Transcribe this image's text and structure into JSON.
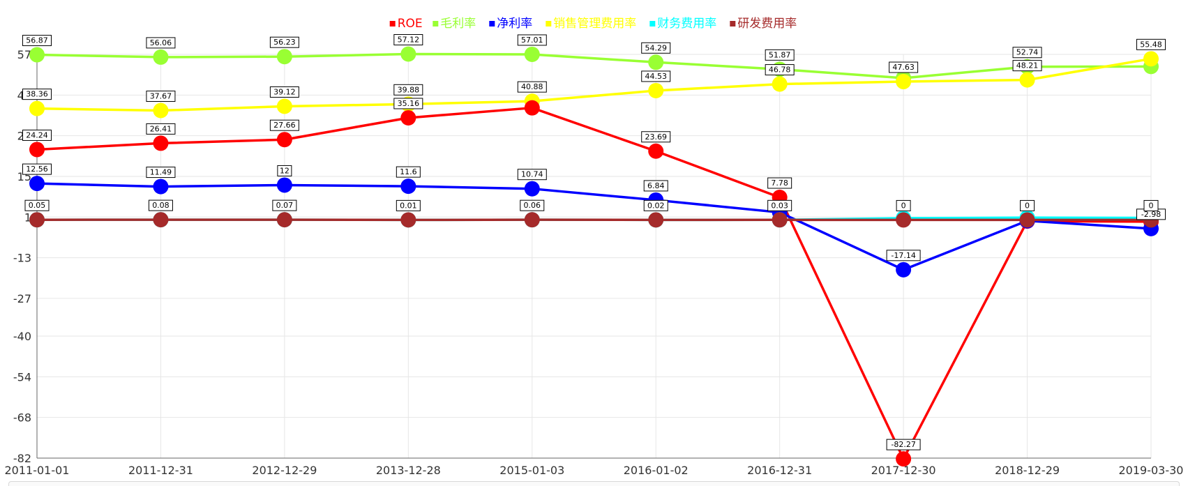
{
  "chart_data": {
    "type": "line",
    "title": "",
    "xlabel": "",
    "ylabel": "",
    "categories": [
      "2011-01-01",
      "2011-12-31",
      "2012-12-29",
      "2013-12-28",
      "2015-01-03",
      "2016-01-02",
      "2016-12-31",
      "2017-12-30",
      "2018-12-29",
      "2019-03-30"
    ],
    "y_ticks": [
      "57",
      "43",
      "29",
      "15",
      "1",
      "-13",
      "-27",
      "-40",
      "-54",
      "-68",
      "-82"
    ],
    "ylim": [
      -82,
      57
    ],
    "grid": true,
    "legend_position": "top-center",
    "series": [
      {
        "name": "ROE",
        "color": "#ff0000",
        "values": [
          24.24,
          26.41,
          27.66,
          35.16,
          38.59,
          23.69,
          7.78,
          -82.27,
          -0.4,
          -0.6
        ],
        "labels": [
          "24.24",
          "26.41",
          "27.66",
          "35.16",
          "",
          "23.69",
          "7.78",
          "-82.27",
          "",
          ""
        ]
      },
      {
        "name": "毛利率",
        "color": "#99ff33",
        "values": [
          56.87,
          56.06,
          56.23,
          57.12,
          57.01,
          54.29,
          51.87,
          48.85,
          52.74,
          52.84
        ],
        "labels": [
          "56.87",
          "56.06",
          "56.23",
          "57.12",
          "57.01",
          "54.29",
          "51.87",
          "",
          "52.74",
          ""
        ]
      },
      {
        "name": "净利率",
        "color": "#0000ff",
        "values": [
          12.56,
          11.49,
          12.0,
          11.6,
          10.74,
          6.84,
          2.61,
          -17.14,
          -0.3,
          -2.98
        ],
        "labels": [
          "12.56",
          "11.49",
          "12",
          "11.6",
          "10.74",
          "6.84",
          "",
          "-17.14",
          "",
          "-2.98"
        ]
      },
      {
        "name": "销售管理费用率",
        "color": "#ffff00",
        "values": [
          38.36,
          37.67,
          39.12,
          39.88,
          40.88,
          44.53,
          46.78,
          47.63,
          48.21,
          55.48
        ],
        "labels": [
          "38.36",
          "37.67",
          "39.12",
          "39.88",
          "40.88",
          "44.53",
          "46.78",
          "47.63",
          "48.21",
          "55.48"
        ]
      },
      {
        "name": "财务费用率",
        "color": "#00ffff",
        "values": [
          0.05,
          0.08,
          0.07,
          0.01,
          0.06,
          0.02,
          0.03,
          0.6,
          0.8,
          0.7
        ],
        "labels": [
          "",
          "",
          "",
          "",
          "",
          "",
          "",
          "",
          "",
          ""
        ]
      },
      {
        "name": "研发费用率",
        "color": "#a52a2a",
        "values": [
          0.05,
          0.08,
          0.07,
          0.01,
          0.06,
          0.02,
          0.03,
          0.0,
          0.0,
          0.0
        ],
        "labels": [
          "0.05",
          "0.08",
          "0.07",
          "0.01",
          "0.06",
          "0.02",
          "0.03",
          "0",
          "0",
          "0"
        ]
      }
    ]
  }
}
